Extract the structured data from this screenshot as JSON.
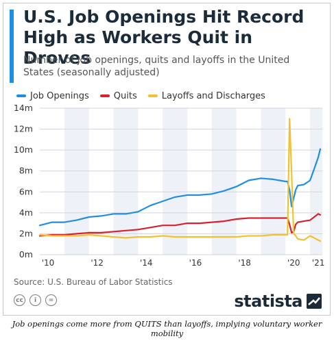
{
  "header": {
    "title": "U.S. Job Openings Hit Record High as Workers Quit in Droves",
    "subtitle": "Number of job openings, quits and layoffs in the United States (seasonally adjusted)"
  },
  "colors": {
    "accent": "#1a8fe3",
    "job_openings": "#1f8ee0",
    "quits": "#d9202e",
    "layoffs": "#f2c12e",
    "band": "#eef1f8"
  },
  "chart_data": {
    "type": "line",
    "title": "U.S. Job Openings Hit Record High as Workers Quit in Droves",
    "subtitle": "Number of job openings, quits and layoffs in the United States (seasonally adjusted)",
    "y_tick_labels": [
      "0m",
      "2m",
      "4m",
      "6m",
      "8m",
      "10m",
      "12m",
      "14m"
    ],
    "x_tick_labels": [
      "'10",
      "'12",
      "'14",
      "'16",
      "'18",
      "'20",
      "'21"
    ],
    "ylim": [
      0,
      14
    ],
    "y_unit": "million",
    "grid": true,
    "legend_position": "top-left",
    "x": [
      "2010-01",
      "2010-07",
      "2011-01",
      "2011-07",
      "2012-01",
      "2012-07",
      "2013-01",
      "2013-07",
      "2014-01",
      "2014-07",
      "2015-01",
      "2015-07",
      "2016-01",
      "2016-07",
      "2017-01",
      "2017-07",
      "2018-01",
      "2018-07",
      "2019-01",
      "2019-07",
      "2020-01",
      "2020-02",
      "2020-03",
      "2020-04",
      "2020-05",
      "2020-06",
      "2020-07",
      "2020-10",
      "2021-01",
      "2021-03",
      "2021-05",
      "2021-06"
    ],
    "series": [
      {
        "name": "Job Openings",
        "color": "#1f8ee0",
        "values": [
          2.8,
          3.1,
          3.1,
          3.3,
          3.6,
          3.7,
          3.9,
          3.9,
          4.1,
          4.7,
          5.1,
          5.5,
          5.7,
          5.7,
          5.8,
          6.1,
          6.5,
          7.1,
          7.3,
          7.2,
          7.0,
          7.0,
          6.2,
          4.6,
          5.4,
          6.2,
          6.6,
          6.7,
          7.1,
          8.2,
          9.3,
          10.1
        ]
      },
      {
        "name": "Quits",
        "color": "#d9202e",
        "values": [
          1.8,
          1.9,
          1.9,
          2.0,
          2.1,
          2.1,
          2.2,
          2.3,
          2.4,
          2.6,
          2.8,
          2.8,
          3.0,
          3.0,
          3.1,
          3.2,
          3.4,
          3.5,
          3.5,
          3.5,
          3.5,
          3.5,
          2.9,
          2.1,
          2.2,
          2.9,
          3.1,
          3.2,
          3.3,
          3.6,
          3.9,
          3.8
        ]
      },
      {
        "name": "Layoffs and Discharges",
        "color": "#f2c12e",
        "values": [
          1.9,
          1.8,
          1.8,
          1.8,
          1.9,
          1.8,
          1.7,
          1.6,
          1.7,
          1.7,
          1.8,
          1.7,
          1.7,
          1.7,
          1.7,
          1.7,
          1.7,
          1.8,
          1.8,
          1.9,
          1.9,
          1.9,
          13.0,
          7.7,
          2.0,
          1.8,
          1.5,
          1.4,
          1.8,
          1.6,
          1.4,
          1.3
        ]
      }
    ]
  },
  "footer": {
    "source": "Source: U.S. Bureau of Labor Statistics",
    "brand": "statista",
    "license_icons": [
      "cc",
      "i",
      "="
    ]
  },
  "caption": "Job openings come more from QUITS than layoffs, implying voluntary worker mobility"
}
